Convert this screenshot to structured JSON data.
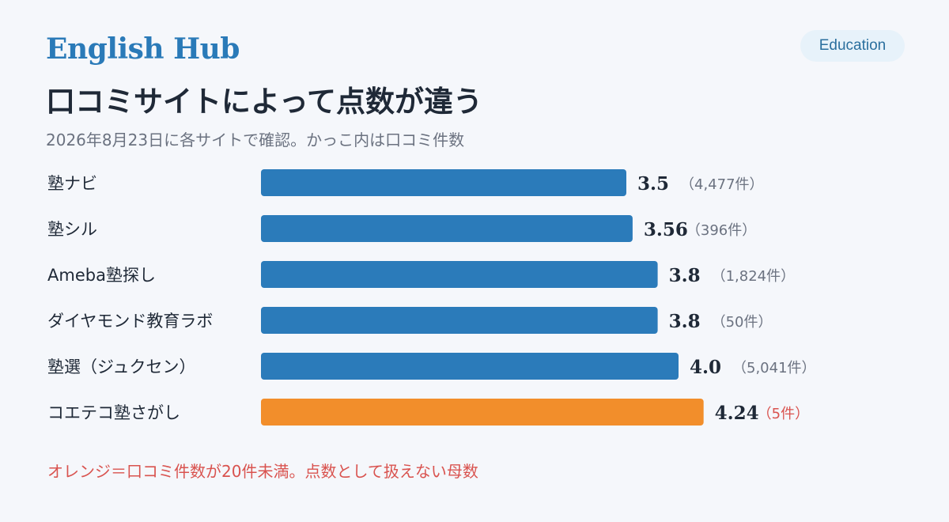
{
  "brand": "English Hub",
  "badge": "Education",
  "title": "口コミサイトによって点数が違う",
  "subtitle": "2026年8月23日に各サイトで確認。かっこ内は口コミ件数",
  "footnote": "オレンジ＝口コミ件数が20件未満。点数として扱えない母数",
  "colors": {
    "normal": "#2b7bba",
    "low_sample": "#f28e2b",
    "low_sample_count_text": "#d9534f",
    "count_text": "#6b7280",
    "value_text": "#1f2937"
  },
  "chart_data": {
    "type": "bar",
    "orientation": "horizontal",
    "categories": [
      "塾ナビ",
      "塾シル",
      "Ameba塾探し",
      "ダイヤモンド教育ラボ",
      "塾選（ジュクセン）",
      "コエテコ塾さがし"
    ],
    "values": [
      3.5,
      3.56,
      3.8,
      3.8,
      4.0,
      4.24
    ],
    "value_labels": [
      "3.5",
      "3.56",
      "3.8",
      "3.8",
      "4.0",
      "4.24"
    ],
    "counts": [
      "（4,477件）",
      "（396件）",
      "（1,824件）",
      "（50件）",
      "（5,041件）",
      "（5件）"
    ],
    "low_sample": [
      false,
      false,
      false,
      false,
      false,
      true
    ],
    "xlim": [
      0,
      4.5
    ],
    "grid": false
  }
}
